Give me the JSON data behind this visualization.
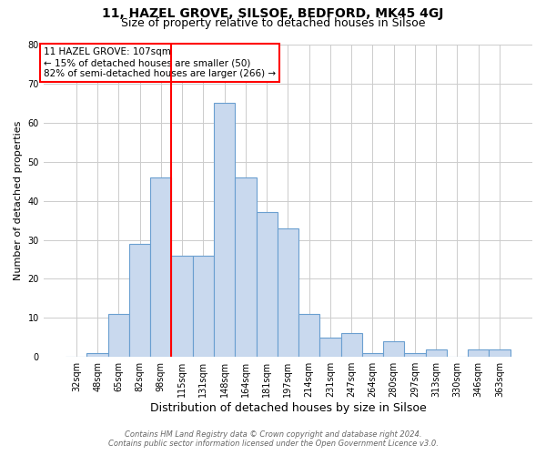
{
  "title": "11, HAZEL GROVE, SILSOE, BEDFORD, MK45 4GJ",
  "subtitle": "Size of property relative to detached houses in Silsoe",
  "xlabel": "Distribution of detached houses by size in Silsoe",
  "ylabel": "Number of detached properties",
  "categories": [
    "32sqm",
    "48sqm",
    "65sqm",
    "82sqm",
    "98sqm",
    "115sqm",
    "131sqm",
    "148sqm",
    "164sqm",
    "181sqm",
    "197sqm",
    "214sqm",
    "231sqm",
    "247sqm",
    "264sqm",
    "280sqm",
    "297sqm",
    "313sqm",
    "330sqm",
    "346sqm",
    "363sqm"
  ],
  "values": [
    0,
    1,
    11,
    29,
    46,
    26,
    26,
    65,
    46,
    37,
    33,
    11,
    5,
    6,
    1,
    4,
    1,
    2,
    0,
    2,
    2
  ],
  "bar_color": "#c9d9ee",
  "bar_edge_color": "#6a9fd0",
  "vline_x": 4.5,
  "vline_color": "red",
  "annotation_title": "11 HAZEL GROVE: 107sqm",
  "annotation_line1": "← 15% of detached houses are smaller (50)",
  "annotation_line2": "82% of semi-detached houses are larger (266) →",
  "annotation_box_color": "white",
  "annotation_box_edge": "red",
  "ylim": [
    0,
    80
  ],
  "yticks": [
    0,
    10,
    20,
    30,
    40,
    50,
    60,
    70,
    80
  ],
  "footer1": "Contains HM Land Registry data © Crown copyright and database right 2024.",
  "footer2": "Contains public sector information licensed under the Open Government Licence v3.0.",
  "bg_color": "white",
  "grid_color": "#cccccc",
  "title_fontsize": 10,
  "subtitle_fontsize": 9,
  "tick_fontsize": 7,
  "ylabel_fontsize": 8,
  "xlabel_fontsize": 9,
  "annotation_fontsize": 7.5,
  "footer_fontsize": 6
}
